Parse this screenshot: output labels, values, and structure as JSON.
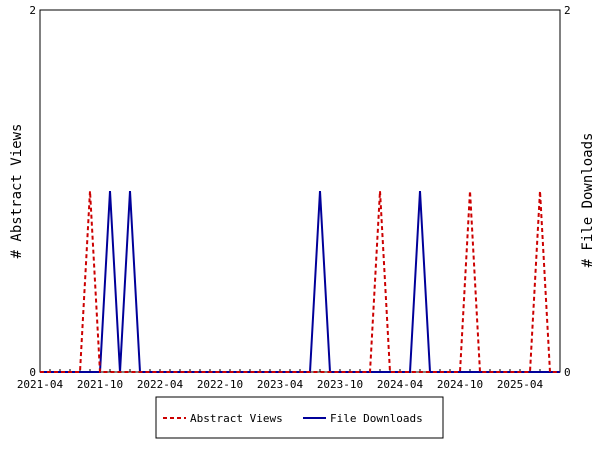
{
  "chart_data": {
    "type": "line",
    "x": [
      "2021-04",
      "2021-05",
      "2021-06",
      "2021-07",
      "2021-08",
      "2021-09",
      "2021-10",
      "2021-11",
      "2021-12",
      "2022-01",
      "2022-02",
      "2022-03",
      "2022-04",
      "2022-05",
      "2022-06",
      "2022-07",
      "2022-08",
      "2022-09",
      "2022-10",
      "2022-11",
      "2022-12",
      "2023-01",
      "2023-02",
      "2023-03",
      "2023-04",
      "2023-05",
      "2023-06",
      "2023-07",
      "2023-08",
      "2023-09",
      "2023-10",
      "2023-11",
      "2023-12",
      "2024-01",
      "2024-02",
      "2024-03",
      "2024-04",
      "2024-05",
      "2024-06",
      "2024-07",
      "2024-08",
      "2024-09",
      "2024-10",
      "2024-11",
      "2024-12",
      "2025-01",
      "2025-02",
      "2025-03",
      "2025-04",
      "2025-05",
      "2025-06",
      "2025-07",
      "2025-08"
    ],
    "x_tick_labels": [
      "2021-04",
      "2021-10",
      "2022-04",
      "2022-10",
      "2023-04",
      "2023-10",
      "2024-04",
      "2024-10",
      "2025-04"
    ],
    "series": [
      {
        "name": "Abstract Views",
        "axis": "left",
        "color": "#cc0000",
        "style": "dashed",
        "values": [
          0,
          0,
          0,
          0,
          0,
          1,
          0,
          0,
          0,
          0,
          0,
          0,
          0,
          0,
          0,
          0,
          0,
          0,
          0,
          0,
          0,
          0,
          0,
          0,
          0,
          0,
          0,
          0,
          0,
          0,
          0,
          0,
          0,
          0,
          1,
          0,
          0,
          0,
          0,
          0,
          0,
          0,
          0,
          1,
          0,
          0,
          0,
          0,
          0,
          0,
          1,
          0,
          0
        ]
      },
      {
        "name": "File Downloads",
        "axis": "right",
        "color": "#000099",
        "style": "solid",
        "values": [
          0,
          0,
          0,
          0,
          0,
          0,
          0,
          1,
          0,
          1,
          0,
          0,
          0,
          0,
          0,
          0,
          0,
          0,
          0,
          0,
          0,
          0,
          0,
          0,
          0,
          0,
          0,
          0,
          1,
          0,
          0,
          0,
          0,
          0,
          0,
          0,
          0,
          0,
          1,
          0,
          0,
          0,
          0,
          0,
          0,
          0,
          0,
          0,
          0,
          0,
          0,
          0,
          0
        ]
      }
    ],
    "ylabel_left": "# Abstract Views",
    "ylabel_right": "# File Downloads",
    "ylim_left": [
      0,
      2
    ],
    "ylim_right": [
      0,
      2
    ],
    "y_ticks_left": [
      "0",
      "2"
    ],
    "y_ticks_right": [
      "0",
      "2"
    ],
    "legend_placement": "bottom-center",
    "grid": false
  }
}
